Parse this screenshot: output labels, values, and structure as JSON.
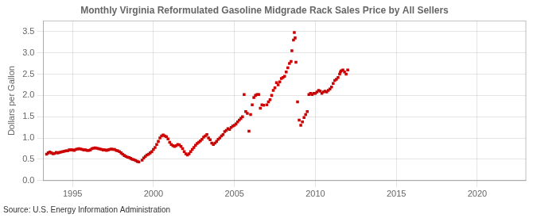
{
  "chart_data": {
    "type": "scatter",
    "title": "Monthly Virginia Reformulated Gasoline Midgrade Rack Sales Price by All Sellers",
    "y_label": "Dollars per Gallon",
    "annotations": [
      "Source: U.S. Energy Information Administration"
    ],
    "color": "#CC0000",
    "marker": "square",
    "grid": true,
    "xlim": [
      1993.2,
      2023.0
    ],
    "ylim": [
      0.0,
      3.75
    ],
    "xticks": [
      1995,
      2000,
      2005,
      2010,
      2015,
      2020
    ],
    "yticks": [
      {
        "value": 0.0,
        "label": "0.0"
      },
      0.5,
      {
        "value": 1.0,
        "label": "1.0"
      },
      1.5,
      {
        "value": 2.0,
        "label": "2.0"
      },
      2.5,
      {
        "value": 3.0,
        "label": "3.0"
      },
      3.5
    ],
    "x": [
      1993.4,
      1993.5,
      1993.6,
      1993.7,
      1993.8,
      1993.9,
      1994.0,
      1994.1,
      1994.2,
      1994.3,
      1994.4,
      1994.5,
      1994.6,
      1994.7,
      1994.8,
      1994.9,
      1995.0,
      1995.1,
      1995.2,
      1995.3,
      1995.4,
      1995.5,
      1995.6,
      1995.7,
      1995.8,
      1995.9,
      1996.0,
      1996.1,
      1996.2,
      1996.3,
      1996.4,
      1996.5,
      1996.6,
      1996.7,
      1996.8,
      1996.9,
      1997.0,
      1997.1,
      1997.2,
      1997.3,
      1997.4,
      1997.5,
      1997.6,
      1997.7,
      1997.8,
      1997.9,
      1998.0,
      1998.1,
      1998.2,
      1998.3,
      1998.4,
      1998.5,
      1998.6,
      1998.7,
      1998.8,
      1998.9,
      1999.0,
      1999.1,
      1999.3,
      1999.4,
      1999.5,
      1999.6,
      1999.7,
      1999.8,
      1999.9,
      2000.0,
      2000.1,
      2000.2,
      2000.3,
      2000.4,
      2000.5,
      2000.6,
      2000.7,
      2000.8,
      2000.9,
      2001.0,
      2001.1,
      2001.2,
      2001.3,
      2001.4,
      2001.5,
      2001.6,
      2001.7,
      2001.8,
      2001.9,
      2002.0,
      2002.1,
      2002.2,
      2002.3,
      2002.4,
      2002.5,
      2002.6,
      2002.7,
      2002.8,
      2002.9,
      2003.0,
      2003.1,
      2003.2,
      2003.3,
      2003.4,
      2003.5,
      2003.6,
      2003.7,
      2003.8,
      2003.9,
      2004.0,
      2004.1,
      2004.2,
      2004.3,
      2004.4,
      2004.5,
      2004.6,
      2004.7,
      2004.8,
      2004.9,
      2005.0,
      2005.1,
      2005.2,
      2005.3,
      2005.4,
      2005.5,
      2005.6,
      2005.7,
      2005.8,
      2005.9,
      2006.0,
      2006.1,
      2006.2,
      2006.3,
      2006.4,
      2006.5,
      2006.6,
      2006.7,
      2006.8,
      2007.0,
      2007.1,
      2007.2,
      2007.3,
      2007.4,
      2007.5,
      2007.6,
      2007.7,
      2007.8,
      2007.9,
      2008.0,
      2008.1,
      2008.2,
      2008.3,
      2008.4,
      2008.5,
      2008.55,
      2008.65,
      2008.7,
      2008.75,
      2008.8,
      2008.9,
      2009.0,
      2009.1,
      2009.2,
      2009.3,
      2009.4,
      2009.5,
      2009.6,
      2009.7,
      2009.8,
      2009.9,
      2010.0,
      2010.1,
      2010.2,
      2010.3,
      2010.4,
      2010.5,
      2010.6,
      2010.7,
      2010.8,
      2010.9,
      2011.0,
      2011.1,
      2011.2,
      2011.3,
      2011.4,
      2011.5,
      2011.55,
      2011.6,
      2011.7,
      2011.8,
      2011.9,
      2012.0
    ],
    "values": [
      0.62,
      0.65,
      0.67,
      0.65,
      0.63,
      0.64,
      0.66,
      0.65,
      0.66,
      0.67,
      0.68,
      0.69,
      0.7,
      0.7,
      0.72,
      0.72,
      0.72,
      0.71,
      0.73,
      0.74,
      0.75,
      0.74,
      0.73,
      0.72,
      0.72,
      0.71,
      0.71,
      0.72,
      0.75,
      0.76,
      0.77,
      0.76,
      0.75,
      0.74,
      0.73,
      0.72,
      0.72,
      0.71,
      0.72,
      0.73,
      0.74,
      0.73,
      0.73,
      0.71,
      0.7,
      0.68,
      0.65,
      0.62,
      0.59,
      0.57,
      0.55,
      0.54,
      0.52,
      0.5,
      0.49,
      0.47,
      0.45,
      0.44,
      0.48,
      0.53,
      0.57,
      0.6,
      0.62,
      0.65,
      0.68,
      0.73,
      0.78,
      0.85,
      0.92,
      1.0,
      1.05,
      1.07,
      1.05,
      1.03,
      0.98,
      0.9,
      0.85,
      0.82,
      0.8,
      0.82,
      0.85,
      0.84,
      0.8,
      0.75,
      0.68,
      0.63,
      0.6,
      0.63,
      0.68,
      0.73,
      0.78,
      0.83,
      0.87,
      0.9,
      0.93,
      0.97,
      1.02,
      1.05,
      1.08,
      1.0,
      0.96,
      0.88,
      0.85,
      0.88,
      0.92,
      0.97,
      1.0,
      1.05,
      1.08,
      1.15,
      1.18,
      1.22,
      1.2,
      1.25,
      1.28,
      1.3,
      1.33,
      1.38,
      1.42,
      1.46,
      1.5,
      2.02,
      1.62,
      1.58,
      1.16,
      1.55,
      1.78,
      1.95,
      2.0,
      2.02,
      2.02,
      1.7,
      1.78,
      1.77,
      1.78,
      1.85,
      1.9,
      2.0,
      2.12,
      2.18,
      2.3,
      2.25,
      2.32,
      2.4,
      2.42,
      2.45,
      2.55,
      2.65,
      2.75,
      2.8,
      3.05,
      3.3,
      3.48,
      3.35,
      2.78,
      1.85,
      1.42,
      1.3,
      1.38,
      1.48,
      1.55,
      1.62,
      2.02,
      2.05,
      2.02,
      2.05,
      2.05,
      2.08,
      2.12,
      2.1,
      2.05,
      2.08,
      2.1,
      2.08,
      2.12,
      2.15,
      2.2,
      2.28,
      2.35,
      2.38,
      2.42,
      2.5,
      2.55,
      2.58,
      2.6,
      2.55,
      2.5,
      2.6
    ]
  }
}
